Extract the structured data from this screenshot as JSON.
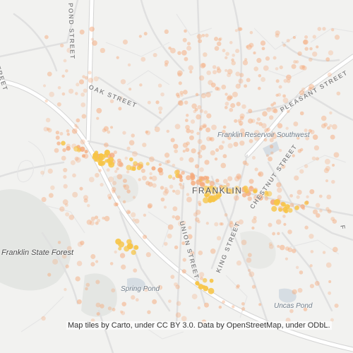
{
  "map": {
    "town_label": "FRANKLIN",
    "colors": {
      "background": "#f2f2f0",
      "road": "#ffffff",
      "road_casing": "#d8d8d8",
      "water": "#d6dde3",
      "forest": "#e4e6e3",
      "heat_low": "#f5a97a",
      "heat_high": "#f7c548"
    },
    "street_labels": {
      "maple": "MAPLE STREET",
      "pond": "POND STREET",
      "oak": "OAK STREET",
      "pleasant": "PLEASANT STREET",
      "chestnut": "CHESTNUT STREET",
      "king": "KING STREET",
      "union": "UNION STREET",
      "edge_f": "F"
    },
    "place_labels": {
      "reservoir": "Franklin Reservoir Southwest",
      "forest": "Franklin State Forest",
      "spring_pond": "Spring Pond",
      "uncas_pond": "Uncas Pond"
    },
    "attribution": "Map tiles by Carto, under CC BY 3.0. Data by OpenStreetMap, under ODbL."
  }
}
